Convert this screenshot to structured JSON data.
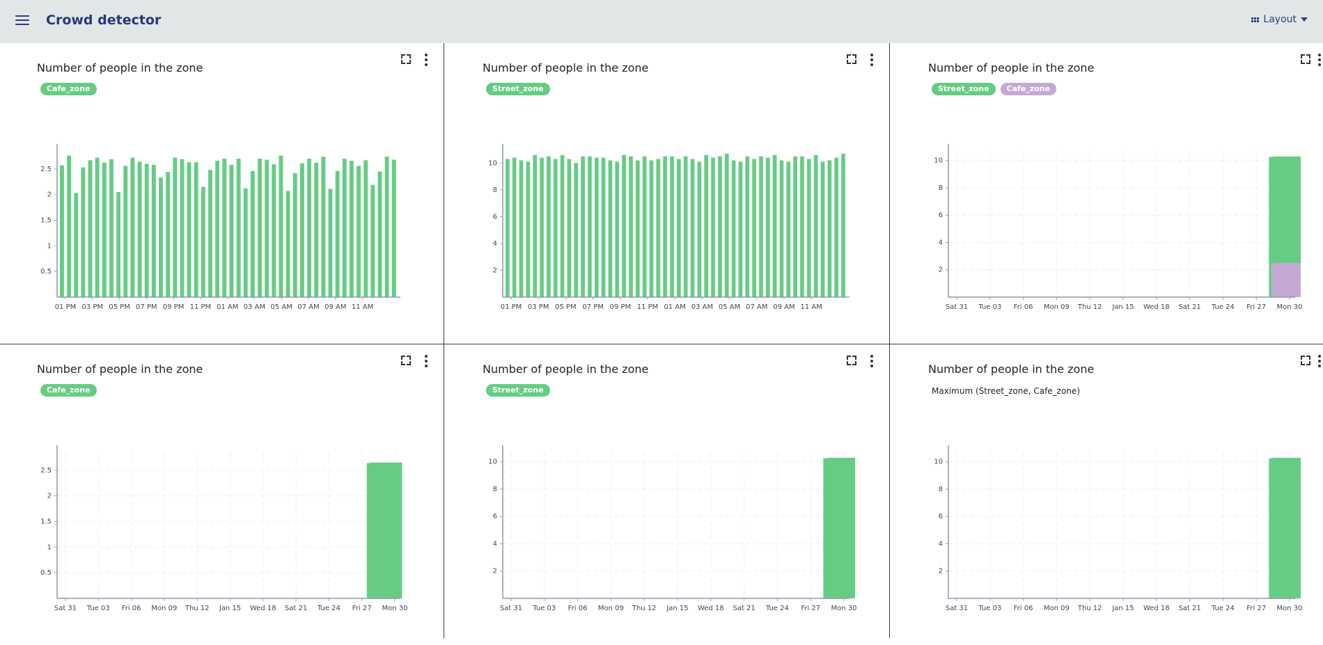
{
  "app": {
    "title": "Crowd detector",
    "layout_label": "Layout"
  },
  "colors": {
    "green": "#66cc84",
    "purple": "#c4a9d6",
    "topbar": "#e1e7e7",
    "title": "#223a7a"
  },
  "panels": [
    {
      "title": "Number of people in the zone",
      "tags": [
        {
          "label": "Cafe_zone",
          "color": "#66cc84"
        }
      ],
      "aggregation": "",
      "chart_data": {
        "type": "bar",
        "xlabel": "",
        "ylabel": "",
        "x_ticks": [
          "01 PM",
          "03 PM",
          "05 PM",
          "07 PM",
          "09 PM",
          "11 PM",
          "01 AM",
          "03 AM",
          "05 AM",
          "07 AM",
          "09 AM",
          "11 AM"
        ],
        "y_ticks": [
          "0.5",
          "1",
          "1.5",
          "2",
          "2.5"
        ],
        "ylim": [
          0,
          2.85
        ],
        "series": [
          {
            "name": "Cafe_zone",
            "color": "#66cc84",
            "values": [
              2.57,
              2.76,
              2.03,
              2.53,
              2.67,
              2.72,
              2.62,
              2.69,
              2.05,
              2.56,
              2.72,
              2.64,
              2.6,
              2.58,
              2.33,
              2.44,
              2.72,
              2.69,
              2.63,
              2.63,
              2.15,
              2.48,
              2.66,
              2.7,
              2.58,
              2.7,
              2.12,
              2.46,
              2.7,
              2.68,
              2.59,
              2.76,
              2.07,
              2.42,
              2.61,
              2.7,
              2.62,
              2.74,
              2.11,
              2.46,
              2.7,
              2.66,
              2.56,
              2.67,
              2.19,
              2.45,
              2.74,
              2.68
            ]
          }
        ]
      }
    },
    {
      "title": "Number of people in the zone",
      "tags": [
        {
          "label": "Street_zone",
          "color": "#66cc84"
        }
      ],
      "aggregation": "",
      "chart_data": {
        "type": "bar",
        "xlabel": "",
        "ylabel": "",
        "x_ticks": [
          "01 PM",
          "03 PM",
          "05 PM",
          "07 PM",
          "09 PM",
          "11 PM",
          "01 AM",
          "03 AM",
          "05 AM",
          "07 AM",
          "09 AM",
          "11 AM"
        ],
        "y_ticks": [
          "2",
          "4",
          "6",
          "8",
          "10"
        ],
        "ylim": [
          0,
          10.9
        ],
        "series": [
          {
            "name": "Street_zone",
            "color": "#66cc84",
            "values": [
              10.3,
              10.4,
              10.2,
              10.1,
              10.6,
              10.4,
              10.5,
              10.3,
              10.6,
              10.3,
              10.0,
              10.5,
              10.5,
              10.4,
              10.4,
              10.2,
              10.1,
              10.6,
              10.5,
              10.2,
              10.5,
              10.2,
              10.3,
              10.5,
              10.5,
              10.3,
              10.5,
              10.3,
              10.1,
              10.6,
              10.4,
              10.5,
              10.7,
              10.2,
              10.1,
              10.5,
              10.3,
              10.5,
              10.4,
              10.6,
              10.2,
              10.1,
              10.5,
              10.5,
              10.3,
              10.6,
              10.1,
              10.2,
              10.4,
              10.7
            ]
          }
        ]
      }
    },
    {
      "title": "Number of people in the zone",
      "tags": [
        {
          "label": "Street_zone",
          "color": "#66cc84"
        },
        {
          "label": "Cafe_zone",
          "color": "#c4a9d6"
        }
      ],
      "aggregation": "",
      "chart_data": {
        "type": "area",
        "xlabel": "",
        "ylabel": "",
        "x_ticks": [
          "Sat 31",
          "Tue 03",
          "Fri 06",
          "Mon 09",
          "Thu 12",
          "Jan 15",
          "Wed 18",
          "Sat 21",
          "Tue 24",
          "Fri 27",
          "Mon 30"
        ],
        "y_ticks": [
          "2",
          "4",
          "6",
          "8",
          "10"
        ],
        "ylim": [
          0,
          10.7
        ],
        "series": [
          {
            "name": "Street_zone",
            "color": "#66cc84",
            "start_tick": 9.38,
            "end_tick": 10.7,
            "value": 10.3
          },
          {
            "name": "Cafe_zone",
            "color": "#c4a9d6",
            "start_tick": 9.45,
            "end_tick": 10.7,
            "value": 2.5
          }
        ]
      }
    },
    {
      "title": "Number of people in the zone",
      "tags": [
        {
          "label": "Cafe_zone",
          "color": "#66cc84"
        }
      ],
      "aggregation": "",
      "chart_data": {
        "type": "area",
        "xlabel": "",
        "ylabel": "",
        "x_ticks": [
          "Sat 31",
          "Tue 03",
          "Fri 06",
          "Mon 09",
          "Thu 12",
          "Jan 15",
          "Wed 18",
          "Sat 21",
          "Tue 24",
          "Fri 27",
          "Mon 30"
        ],
        "y_ticks": [
          "0.5",
          "1",
          "1.5",
          "2",
          "2.5"
        ],
        "ylim": [
          0,
          2.85
        ],
        "series": [
          {
            "name": "Cafe_zone",
            "color": "#66cc84",
            "start_tick": 9.15,
            "end_tick": 10.22,
            "value": 2.65
          }
        ]
      }
    },
    {
      "title": "Number of people in the zone",
      "tags": [
        {
          "label": "Street_zone",
          "color": "#66cc84"
        }
      ],
      "aggregation": "",
      "chart_data": {
        "type": "area",
        "xlabel": "",
        "ylabel": "",
        "x_ticks": [
          "Sat 31",
          "Tue 03",
          "Fri 06",
          "Mon 09",
          "Thu 12",
          "Jan 15",
          "Wed 18",
          "Sat 21",
          "Tue 24",
          "Fri 27",
          "Mon 30"
        ],
        "y_ticks": [
          "2",
          "4",
          "6",
          "8",
          "10"
        ],
        "ylim": [
          0,
          10.7
        ],
        "series": [
          {
            "name": "Street_zone",
            "color": "#66cc84",
            "start_tick": 9.38,
            "end_tick": 10.7,
            "value": 10.3
          }
        ]
      }
    },
    {
      "title": "Number of people in the zone",
      "tags": [],
      "aggregation": "Maximum (Street_zone, Cafe_zone)",
      "chart_data": {
        "type": "area",
        "xlabel": "",
        "ylabel": "",
        "x_ticks": [
          "Sat 31",
          "Tue 03",
          "Fri 06",
          "Mon 09",
          "Thu 12",
          "Jan 15",
          "Wed 18",
          "Sat 21",
          "Tue 24",
          "Fri 27",
          "Mon 30"
        ],
        "y_ticks": [
          "2",
          "4",
          "6",
          "8",
          "10"
        ],
        "ylim": [
          0,
          10.7
        ],
        "series": [
          {
            "color": "#66cc84",
            "start_tick": 9.38,
            "end_tick": 10.7,
            "value": 10.3
          }
        ]
      }
    }
  ]
}
